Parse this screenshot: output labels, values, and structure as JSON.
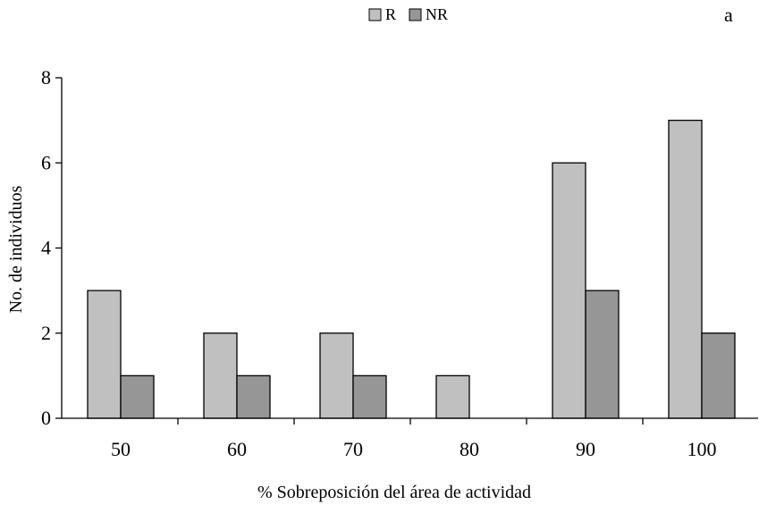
{
  "panel_label": "a",
  "chart_data": {
    "type": "bar",
    "title": "",
    "xlabel": "% Sobreposición del área de actividad",
    "ylabel": "No. de individuos",
    "categories": [
      "50",
      "60",
      "70",
      "80",
      "90",
      "100"
    ],
    "series": [
      {
        "name": "R",
        "color": "#c0c0c0",
        "values": [
          3,
          2,
          2,
          1,
          6,
          7
        ]
      },
      {
        "name": "NR",
        "color": "#969696",
        "values": [
          1,
          1,
          1,
          0,
          3,
          2
        ]
      }
    ],
    "ylim": [
      0,
      8
    ],
    "yticks": [
      "0",
      "2",
      "4",
      "6",
      "8"
    ],
    "grid": false,
    "legend_position": "top-center"
  }
}
